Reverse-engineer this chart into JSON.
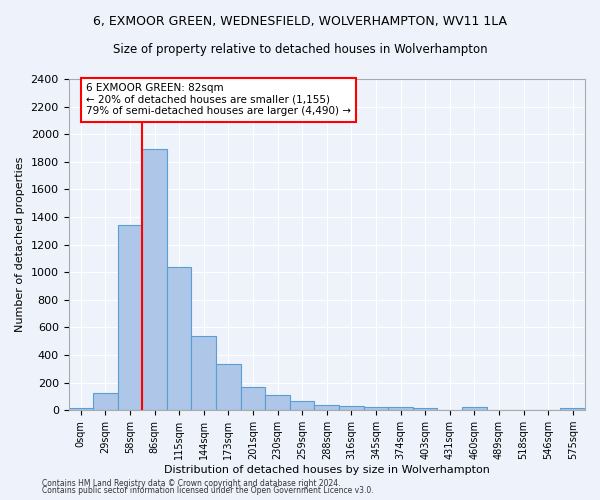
{
  "title1": "6, EXMOOR GREEN, WEDNESFIELD, WOLVERHAMPTON, WV11 1LA",
  "title2": "Size of property relative to detached houses in Wolverhampton",
  "xlabel": "Distribution of detached houses by size in Wolverhampton",
  "ylabel": "Number of detached properties",
  "bar_labels": [
    "0sqm",
    "29sqm",
    "58sqm",
    "86sqm",
    "115sqm",
    "144sqm",
    "173sqm",
    "201sqm",
    "230sqm",
    "259sqm",
    "288sqm",
    "316sqm",
    "345sqm",
    "374sqm",
    "403sqm",
    "431sqm",
    "460sqm",
    "489sqm",
    "518sqm",
    "546sqm",
    "575sqm"
  ],
  "bar_values": [
    15,
    125,
    1340,
    1890,
    1040,
    540,
    335,
    170,
    110,
    65,
    40,
    30,
    25,
    20,
    15,
    5,
    20,
    0,
    0,
    0,
    15
  ],
  "bar_color": "#aec6e8",
  "bar_edge_color": "#5a9fd4",
  "vline_color": "red",
  "annotation_text": "6 EXMOOR GREEN: 82sqm\n← 20% of detached houses are smaller (1,155)\n79% of semi-detached houses are larger (4,490) →",
  "annotation_box_color": "white",
  "annotation_box_edge": "red",
  "ylim": [
    0,
    2400
  ],
  "yticks": [
    0,
    200,
    400,
    600,
    800,
    1000,
    1200,
    1400,
    1600,
    1800,
    2000,
    2200,
    2400
  ],
  "footer1": "Contains HM Land Registry data © Crown copyright and database right 2024.",
  "footer2": "Contains public sector information licensed under the Open Government Licence v3.0.",
  "bg_color": "#eef2fb",
  "grid_color": "#ffffff",
  "title1_fontsize": 9,
  "title2_fontsize": 8.5
}
